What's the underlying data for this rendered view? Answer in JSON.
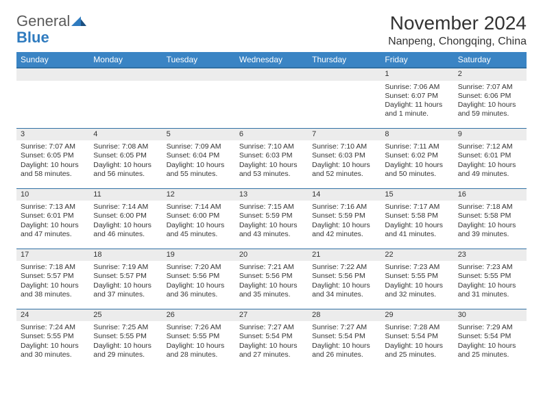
{
  "logo": {
    "text1": "General",
    "text2": "Blue"
  },
  "title": "November 2024",
  "location": "Nanpeng, Chongqing, China",
  "colors": {
    "header_bg": "#3a84c4",
    "header_border": "#2f6fa3",
    "daynum_bg": "#ececec",
    "text": "#333333",
    "logo_gray": "#5a5a5a",
    "logo_blue": "#2f7bbf",
    "background": "#ffffff"
  },
  "weekdays": [
    "Sunday",
    "Monday",
    "Tuesday",
    "Wednesday",
    "Thursday",
    "Friday",
    "Saturday"
  ],
  "days": [
    {
      "n": 1,
      "sr": "7:06 AM",
      "ss": "6:07 PM",
      "dl": "11 hours and 1 minute."
    },
    {
      "n": 2,
      "sr": "7:07 AM",
      "ss": "6:06 PM",
      "dl": "10 hours and 59 minutes."
    },
    {
      "n": 3,
      "sr": "7:07 AM",
      "ss": "6:05 PM",
      "dl": "10 hours and 58 minutes."
    },
    {
      "n": 4,
      "sr": "7:08 AM",
      "ss": "6:05 PM",
      "dl": "10 hours and 56 minutes."
    },
    {
      "n": 5,
      "sr": "7:09 AM",
      "ss": "6:04 PM",
      "dl": "10 hours and 55 minutes."
    },
    {
      "n": 6,
      "sr": "7:10 AM",
      "ss": "6:03 PM",
      "dl": "10 hours and 53 minutes."
    },
    {
      "n": 7,
      "sr": "7:10 AM",
      "ss": "6:03 PM",
      "dl": "10 hours and 52 minutes."
    },
    {
      "n": 8,
      "sr": "7:11 AM",
      "ss": "6:02 PM",
      "dl": "10 hours and 50 minutes."
    },
    {
      "n": 9,
      "sr": "7:12 AM",
      "ss": "6:01 PM",
      "dl": "10 hours and 49 minutes."
    },
    {
      "n": 10,
      "sr": "7:13 AM",
      "ss": "6:01 PM",
      "dl": "10 hours and 47 minutes."
    },
    {
      "n": 11,
      "sr": "7:14 AM",
      "ss": "6:00 PM",
      "dl": "10 hours and 46 minutes."
    },
    {
      "n": 12,
      "sr": "7:14 AM",
      "ss": "6:00 PM",
      "dl": "10 hours and 45 minutes."
    },
    {
      "n": 13,
      "sr": "7:15 AM",
      "ss": "5:59 PM",
      "dl": "10 hours and 43 minutes."
    },
    {
      "n": 14,
      "sr": "7:16 AM",
      "ss": "5:59 PM",
      "dl": "10 hours and 42 minutes."
    },
    {
      "n": 15,
      "sr": "7:17 AM",
      "ss": "5:58 PM",
      "dl": "10 hours and 41 minutes."
    },
    {
      "n": 16,
      "sr": "7:18 AM",
      "ss": "5:58 PM",
      "dl": "10 hours and 39 minutes."
    },
    {
      "n": 17,
      "sr": "7:18 AM",
      "ss": "5:57 PM",
      "dl": "10 hours and 38 minutes."
    },
    {
      "n": 18,
      "sr": "7:19 AM",
      "ss": "5:57 PM",
      "dl": "10 hours and 37 minutes."
    },
    {
      "n": 19,
      "sr": "7:20 AM",
      "ss": "5:56 PM",
      "dl": "10 hours and 36 minutes."
    },
    {
      "n": 20,
      "sr": "7:21 AM",
      "ss": "5:56 PM",
      "dl": "10 hours and 35 minutes."
    },
    {
      "n": 21,
      "sr": "7:22 AM",
      "ss": "5:56 PM",
      "dl": "10 hours and 34 minutes."
    },
    {
      "n": 22,
      "sr": "7:23 AM",
      "ss": "5:55 PM",
      "dl": "10 hours and 32 minutes."
    },
    {
      "n": 23,
      "sr": "7:23 AM",
      "ss": "5:55 PM",
      "dl": "10 hours and 31 minutes."
    },
    {
      "n": 24,
      "sr": "7:24 AM",
      "ss": "5:55 PM",
      "dl": "10 hours and 30 minutes."
    },
    {
      "n": 25,
      "sr": "7:25 AM",
      "ss": "5:55 PM",
      "dl": "10 hours and 29 minutes."
    },
    {
      "n": 26,
      "sr": "7:26 AM",
      "ss": "5:55 PM",
      "dl": "10 hours and 28 minutes."
    },
    {
      "n": 27,
      "sr": "7:27 AM",
      "ss": "5:54 PM",
      "dl": "10 hours and 27 minutes."
    },
    {
      "n": 28,
      "sr": "7:27 AM",
      "ss": "5:54 PM",
      "dl": "10 hours and 26 minutes."
    },
    {
      "n": 29,
      "sr": "7:28 AM",
      "ss": "5:54 PM",
      "dl": "10 hours and 25 minutes."
    },
    {
      "n": 30,
      "sr": "7:29 AM",
      "ss": "5:54 PM",
      "dl": "10 hours and 25 minutes."
    }
  ],
  "first_weekday_index": 5,
  "labels": {
    "sunrise": "Sunrise:",
    "sunset": "Sunset:",
    "daylight": "Daylight:"
  }
}
